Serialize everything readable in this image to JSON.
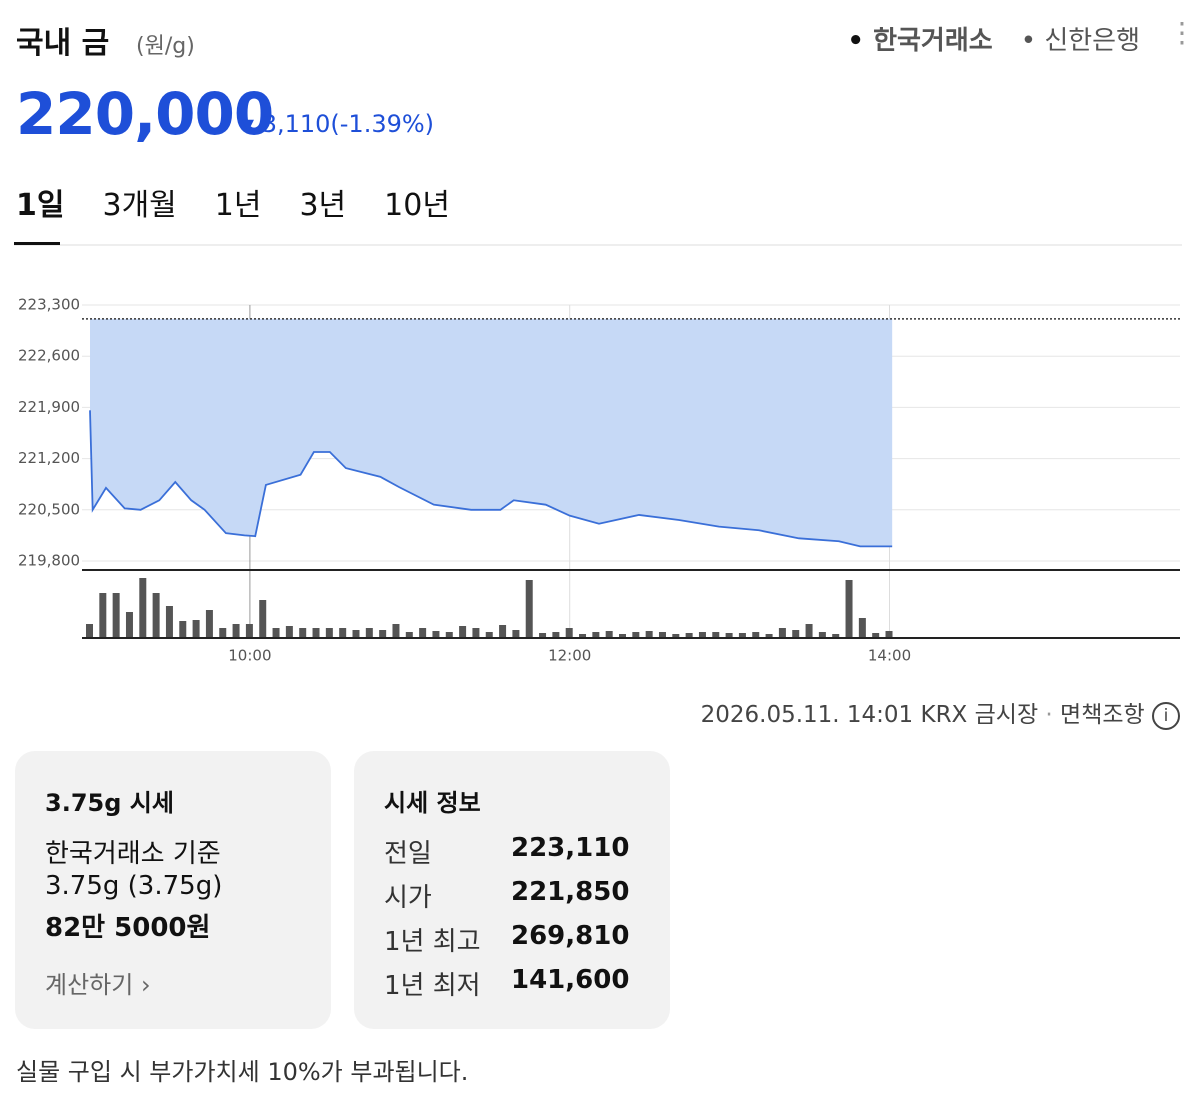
{
  "header": {
    "title": "국내 금",
    "unit": "(원/g)",
    "sources": [
      "한국거래소",
      "신한은행"
    ],
    "price": "220,000",
    "change": "3,110",
    "change_pct": "(-1.39%)"
  },
  "tabs": [
    "1일",
    "3개월",
    "1년",
    "3년",
    "10년"
  ],
  "chart_data": {
    "type": "area",
    "color": "#3a6fd8",
    "fill": "#c6d9f6",
    "grid": true,
    "x": [
      540,
      541,
      546,
      553,
      559,
      566,
      572,
      578,
      583,
      591,
      598,
      602,
      606,
      619,
      624,
      630,
      636,
      649,
      656,
      669,
      683,
      694,
      699,
      711,
      720,
      731,
      746,
      761,
      776,
      791,
      806,
      821,
      829,
      841
    ],
    "values": [
      221860,
      220500,
      220800,
      220520,
      220500,
      220630,
      220880,
      220630,
      220500,
      220180,
      220150,
      220140,
      220840,
      220980,
      221290,
      221290,
      221070,
      220950,
      220810,
      220570,
      220500,
      220500,
      220630,
      220570,
      220420,
      220310,
      220430,
      220360,
      220270,
      220220,
      220110,
      220070,
      220000,
      220000
    ],
    "reference_line": 223110,
    "xlim": [
      537,
      949
    ],
    "xticks": [
      {
        "value": 600,
        "label": "10:00"
      },
      {
        "value": 720,
        "label": "12:00"
      },
      {
        "value": 840,
        "label": "14:00"
      }
    ],
    "ylim": [
      219800,
      223300
    ],
    "yticks": [
      {
        "value": 219800,
        "label": "219,800"
      },
      {
        "value": 220500,
        "label": "220,500"
      },
      {
        "value": 221200,
        "label": "221,200"
      },
      {
        "value": 221900,
        "label": "221,900"
      },
      {
        "value": 222600,
        "label": "222,600"
      },
      {
        "value": 223300,
        "label": "223,300"
      }
    ],
    "volume": {
      "color": "#555555",
      "x": [
        540,
        545,
        550,
        555,
        560,
        565,
        570,
        575,
        580,
        585,
        590,
        595,
        600,
        605,
        610,
        615,
        620,
        625,
        630,
        635,
        640,
        645,
        650,
        655,
        660,
        665,
        670,
        675,
        680,
        685,
        690,
        695,
        700,
        705,
        710,
        715,
        720,
        725,
        730,
        735,
        740,
        745,
        750,
        755,
        760,
        765,
        770,
        775,
        780,
        785,
        790,
        795,
        800,
        805,
        810,
        815,
        820,
        825,
        830,
        835,
        840
      ],
      "values": [
        14,
        45,
        45,
        26,
        60,
        45,
        32,
        17,
        18,
        28,
        10,
        14,
        14,
        38,
        10,
        12,
        10,
        10,
        10,
        10,
        8,
        10,
        8,
        14,
        6,
        10,
        7,
        6,
        12,
        10,
        6,
        13,
        8,
        58,
        5,
        6,
        10,
        4,
        6,
        7,
        4,
        6,
        7,
        6,
        4,
        5,
        6,
        6,
        5,
        5,
        6,
        4,
        10,
        8,
        14,
        6,
        4,
        58,
        20,
        5,
        7
      ]
    }
  },
  "footer": {
    "timestamp": "2026.05.11. 14:01 KRX 금시장",
    "disclaimer": "면책조항"
  },
  "cards": [
    {
      "title": "3.75g 시세",
      "lines": [
        "한국거래소 기준",
        "3.75g (3.75g)",
        "82만 5000원"
      ],
      "link": "계산하기"
    },
    {
      "title": "시세 정보",
      "rows": [
        [
          "전일",
          "223,110"
        ],
        [
          "시가",
          "221,850"
        ],
        [
          "1년 최고",
          "269,810"
        ],
        [
          "1년 최저",
          "141,600"
        ]
      ]
    }
  ],
  "note": "실물 구입 시 부가가치세 10%가 부과됩니다."
}
